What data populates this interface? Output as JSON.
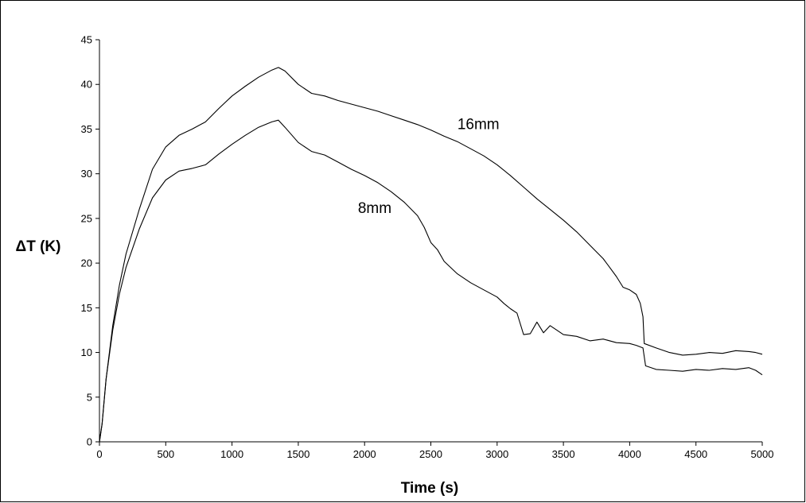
{
  "chart_data": {
    "type": "line",
    "xlabel": "Time (s)",
    "ylabel": "ΔT  (K)",
    "xlim": [
      0,
      5000
    ],
    "ylim": [
      0,
      45
    ],
    "x_ticks": [
      0,
      500,
      1000,
      1500,
      2000,
      2500,
      3000,
      3500,
      4000,
      4500,
      5000
    ],
    "y_ticks": [
      0,
      5,
      10,
      15,
      20,
      25,
      30,
      35,
      40,
      45
    ],
    "grid": false,
    "legend": "none",
    "line_color": "#000000",
    "series": [
      {
        "name": "16mm",
        "label_at": [
          2700,
          35
        ],
        "points": [
          [
            0,
            0
          ],
          [
            20,
            2
          ],
          [
            50,
            7
          ],
          [
            100,
            13
          ],
          [
            150,
            17.5
          ],
          [
            200,
            21
          ],
          [
            300,
            26
          ],
          [
            400,
            30.5
          ],
          [
            500,
            33
          ],
          [
            600,
            34.3
          ],
          [
            700,
            35
          ],
          [
            800,
            35.8
          ],
          [
            900,
            37.3
          ],
          [
            1000,
            38.7
          ],
          [
            1100,
            39.8
          ],
          [
            1200,
            40.8
          ],
          [
            1300,
            41.6
          ],
          [
            1350,
            41.9
          ],
          [
            1400,
            41.5
          ],
          [
            1500,
            40.0
          ],
          [
            1600,
            39.0
          ],
          [
            1700,
            38.7
          ],
          [
            1800,
            38.2
          ],
          [
            1900,
            37.8
          ],
          [
            2000,
            37.4
          ],
          [
            2100,
            37.0
          ],
          [
            2200,
            36.5
          ],
          [
            2300,
            36.0
          ],
          [
            2400,
            35.5
          ],
          [
            2500,
            34.9
          ],
          [
            2600,
            34.2
          ],
          [
            2700,
            33.6
          ],
          [
            2800,
            32.8
          ],
          [
            2900,
            32.0
          ],
          [
            3000,
            31.0
          ],
          [
            3100,
            29.8
          ],
          [
            3200,
            28.5
          ],
          [
            3300,
            27.2
          ],
          [
            3400,
            26.0
          ],
          [
            3500,
            24.8
          ],
          [
            3600,
            23.5
          ],
          [
            3700,
            22.0
          ],
          [
            3800,
            20.5
          ],
          [
            3850,
            19.5
          ],
          [
            3900,
            18.5
          ],
          [
            3950,
            17.3
          ],
          [
            4000,
            17.0
          ],
          [
            4050,
            16.5
          ],
          [
            4080,
            15.5
          ],
          [
            4100,
            14.0
          ],
          [
            4110,
            11.0
          ],
          [
            4200,
            10.5
          ],
          [
            4300,
            10.0
          ],
          [
            4400,
            9.7
          ],
          [
            4500,
            9.8
          ],
          [
            4600,
            10.0
          ],
          [
            4700,
            9.9
          ],
          [
            4800,
            10.2
          ],
          [
            4900,
            10.1
          ],
          [
            4950,
            10.0
          ],
          [
            5000,
            9.8
          ]
        ]
      },
      {
        "name": "8mm",
        "label_at": [
          1950,
          25.6
        ],
        "points": [
          [
            0,
            0
          ],
          [
            20,
            2
          ],
          [
            50,
            7
          ],
          [
            100,
            12.5
          ],
          [
            150,
            16.5
          ],
          [
            200,
            19.5
          ],
          [
            300,
            23.8
          ],
          [
            400,
            27.3
          ],
          [
            500,
            29.3
          ],
          [
            600,
            30.3
          ],
          [
            700,
            30.6
          ],
          [
            800,
            31.0
          ],
          [
            900,
            32.2
          ],
          [
            1000,
            33.3
          ],
          [
            1100,
            34.3
          ],
          [
            1200,
            35.2
          ],
          [
            1300,
            35.8
          ],
          [
            1350,
            36.0
          ],
          [
            1400,
            35.2
          ],
          [
            1500,
            33.5
          ],
          [
            1600,
            32.5
          ],
          [
            1700,
            32.1
          ],
          [
            1800,
            31.3
          ],
          [
            1900,
            30.5
          ],
          [
            2000,
            29.8
          ],
          [
            2100,
            29.0
          ],
          [
            2200,
            28.0
          ],
          [
            2300,
            26.8
          ],
          [
            2400,
            25.3
          ],
          [
            2450,
            24.0
          ],
          [
            2500,
            22.3
          ],
          [
            2550,
            21.5
          ],
          [
            2600,
            20.2
          ],
          [
            2700,
            18.8
          ],
          [
            2800,
            17.8
          ],
          [
            2900,
            17.0
          ],
          [
            3000,
            16.2
          ],
          [
            3050,
            15.5
          ],
          [
            3100,
            14.9
          ],
          [
            3150,
            14.4
          ],
          [
            3200,
            12.0
          ],
          [
            3250,
            12.1
          ],
          [
            3300,
            13.4
          ],
          [
            3350,
            12.2
          ],
          [
            3400,
            13.0
          ],
          [
            3450,
            12.5
          ],
          [
            3500,
            12.0
          ],
          [
            3600,
            11.8
          ],
          [
            3700,
            11.3
          ],
          [
            3800,
            11.5
          ],
          [
            3900,
            11.1
          ],
          [
            4000,
            11.0
          ],
          [
            4050,
            10.8
          ],
          [
            4100,
            10.5
          ],
          [
            4120,
            8.5
          ],
          [
            4200,
            8.1
          ],
          [
            4300,
            8.0
          ],
          [
            4400,
            7.9
          ],
          [
            4500,
            8.1
          ],
          [
            4600,
            8.0
          ],
          [
            4700,
            8.2
          ],
          [
            4800,
            8.1
          ],
          [
            4900,
            8.3
          ],
          [
            4950,
            8.0
          ],
          [
            5000,
            7.5
          ]
        ]
      }
    ]
  }
}
